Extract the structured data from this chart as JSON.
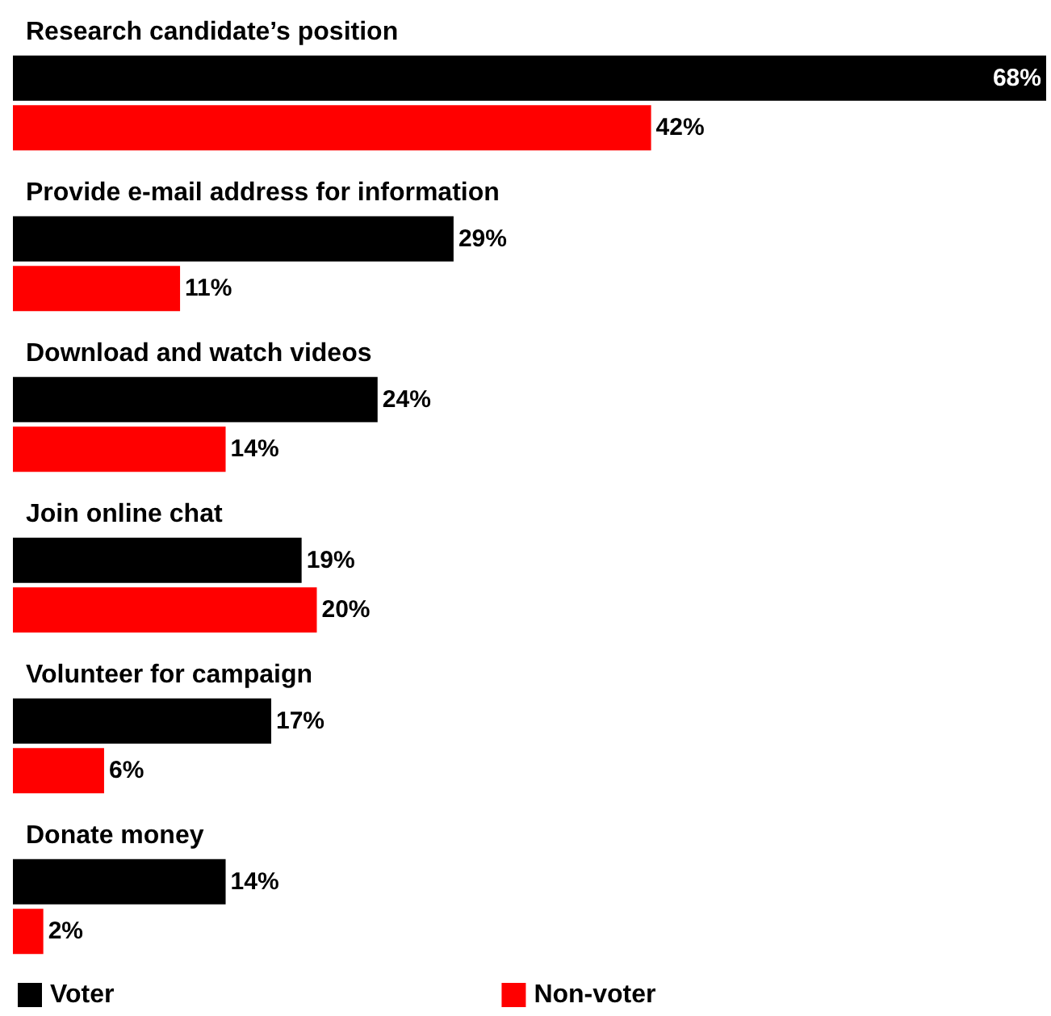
{
  "chart_data": {
    "type": "bar",
    "orientation": "horizontal",
    "categories": [
      "Research candidate’s position",
      "Provide e-mail address for information",
      "Download and watch videos",
      "Join online chat",
      "Volunteer for campaign",
      "Donate money"
    ],
    "series": [
      {
        "name": "Voter",
        "color": "#000000",
        "values": [
          68,
          29,
          24,
          19,
          17,
          14
        ],
        "value_labels": [
          "68%",
          "29%",
          "24%",
          "19%",
          "17%",
          "14%"
        ]
      },
      {
        "name": "Non-voter",
        "color": "#ff0000",
        "values": [
          42,
          11,
          14,
          20,
          6,
          2
        ],
        "value_labels": [
          "42%",
          "11%",
          "14%",
          "20%",
          "6%",
          "2%"
        ]
      }
    ],
    "xlim": [
      0,
      68
    ],
    "legend": "bottom left"
  }
}
